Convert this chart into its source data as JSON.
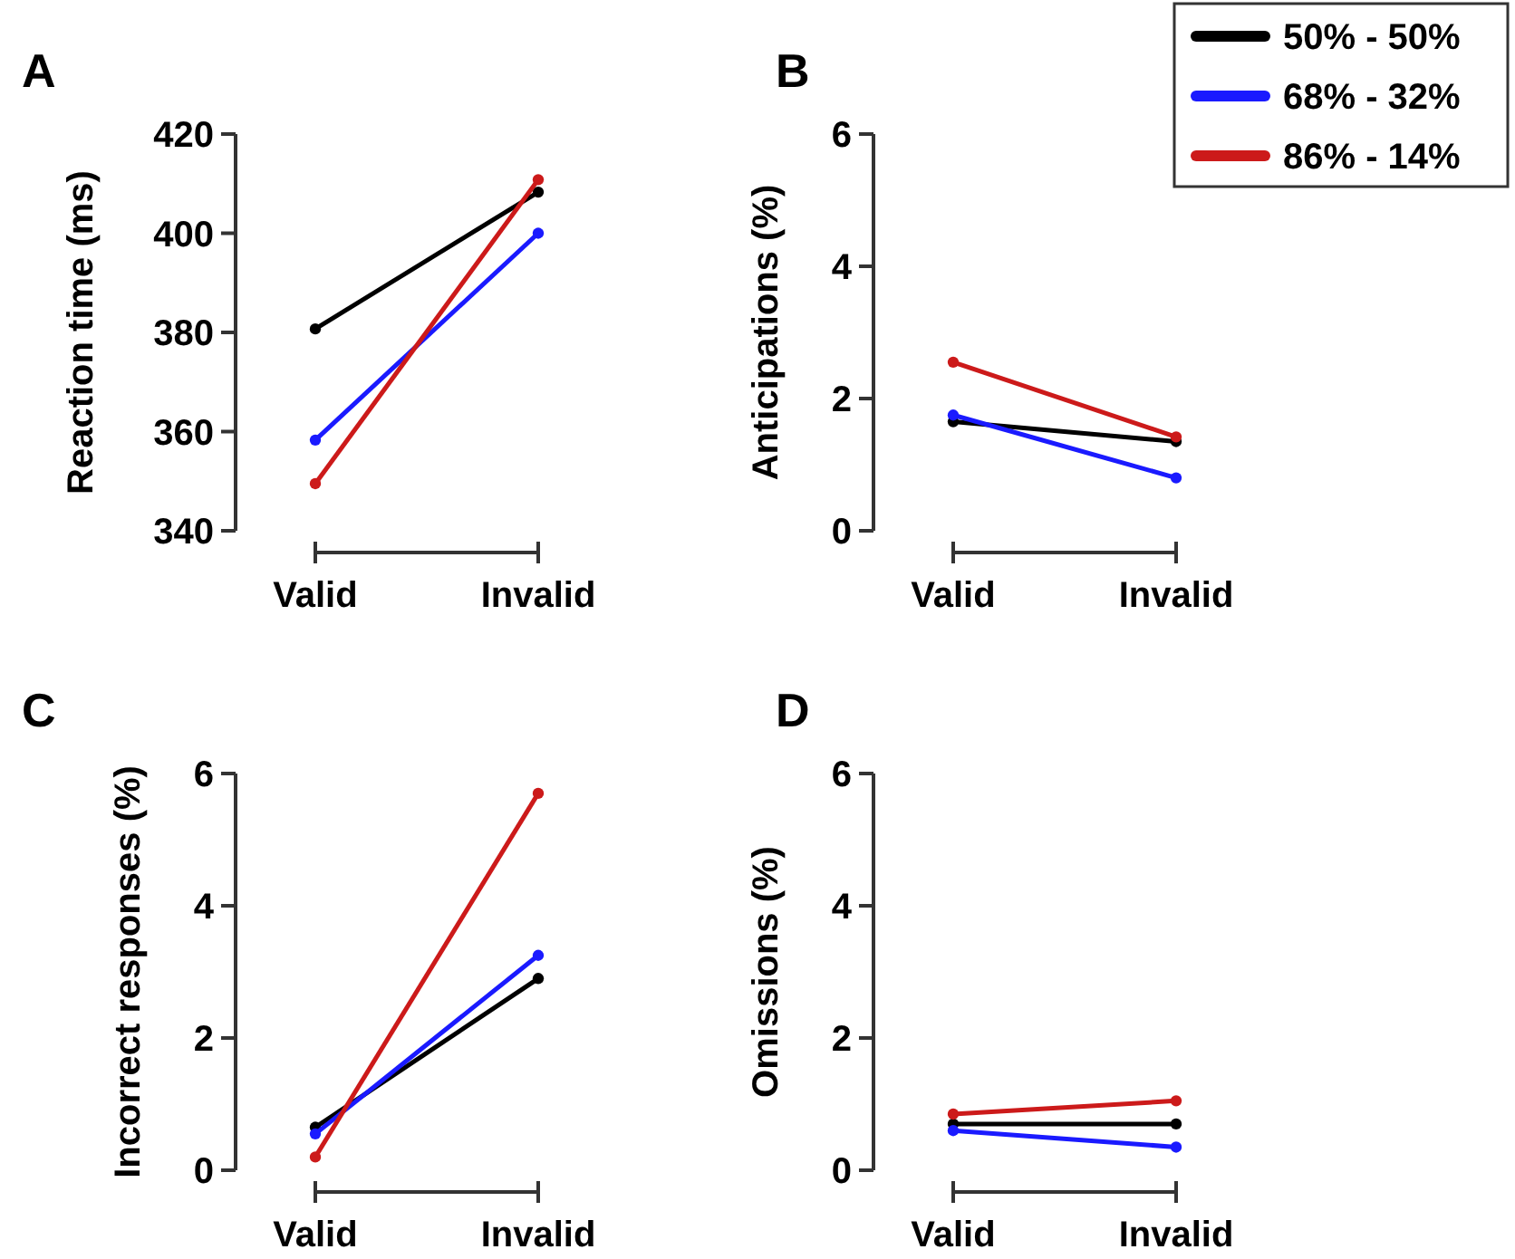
{
  "chart_data": [
    {
      "type": "line",
      "title": "A",
      "ylabel": "Reaction time (ms)",
      "categories": [
        "Valid",
        "Invalid"
      ],
      "ylim": [
        340,
        420
      ],
      "yticks": [
        340,
        360,
        380,
        400,
        420
      ],
      "marker": "circle",
      "grid": false,
      "legend": false,
      "series": [
        {
          "color": "#000000",
          "values": [
            380.7,
            408.3
          ]
        },
        {
          "color": "#1a1aff",
          "values": [
            358.3,
            400
          ]
        },
        {
          "color": "#cc1a1a",
          "values": [
            349.5,
            410.8
          ]
        }
      ]
    },
    {
      "type": "line",
      "title": "B",
      "ylabel": "Anticipations (%)",
      "categories": [
        "Valid",
        "Invalid"
      ],
      "ylim": [
        0,
        6
      ],
      "yticks": [
        0,
        2,
        4,
        6
      ],
      "marker": "circle",
      "grid": false,
      "legend": "top right",
      "series": [
        {
          "name": "50% - 50%",
          "color": "#000000",
          "values": [
            1.65,
            1.35
          ]
        },
        {
          "name": "68% - 32%",
          "color": "#1a1aff",
          "values": [
            1.75,
            0.8
          ]
        },
        {
          "name": "86% - 14%",
          "color": "#cc1a1a",
          "values": [
            2.55,
            1.42
          ]
        }
      ]
    },
    {
      "type": "line",
      "title": "C",
      "ylabel": "Incorrect responses (%)",
      "categories": [
        "Valid",
        "Invalid"
      ],
      "ylim": [
        0,
        6
      ],
      "yticks": [
        0,
        2,
        4,
        6
      ],
      "marker": "circle",
      "grid": false,
      "legend": false,
      "series": [
        {
          "color": "#000000",
          "values": [
            0.65,
            2.9
          ]
        },
        {
          "color": "#1a1aff",
          "values": [
            0.55,
            3.25
          ]
        },
        {
          "color": "#cc1a1a",
          "values": [
            0.2,
            5.7
          ]
        }
      ]
    },
    {
      "type": "line",
      "title": "D",
      "ylabel": "Omissions (%)",
      "categories": [
        "Valid",
        "Invalid"
      ],
      "ylim": [
        0,
        6
      ],
      "yticks": [
        0,
        2,
        4,
        6
      ],
      "marker": "circle",
      "grid": false,
      "legend": false,
      "series": [
        {
          "color": "#000000",
          "values": [
            0.7,
            0.7
          ]
        },
        {
          "color": "#1a1aff",
          "values": [
            0.6,
            0.35
          ]
        },
        {
          "color": "#cc1a1a",
          "values": [
            0.85,
            1.05
          ]
        }
      ]
    }
  ]
}
